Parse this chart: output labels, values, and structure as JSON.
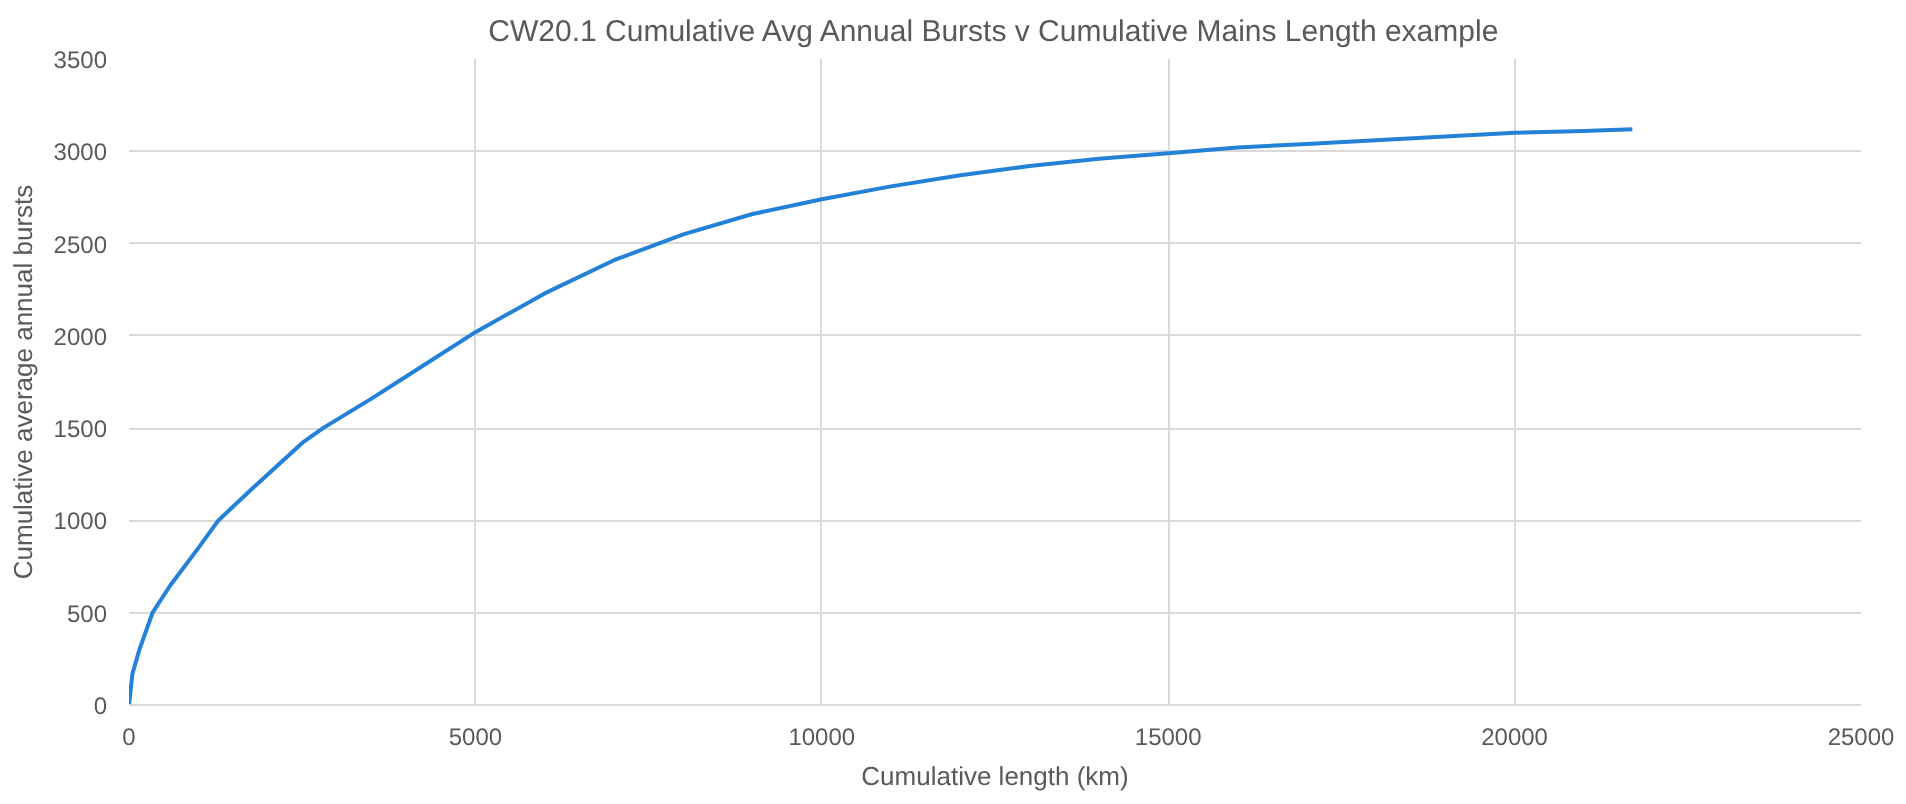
{
  "chart_data": {
    "type": "line",
    "title": "CW20.1 Cumulative Avg Annual Bursts v Cumulative Mains Length example",
    "xlabel": "Cumulative length (km)",
    "ylabel": "Cumulative average annual bursts",
    "x": [
      0,
      50,
      150,
      340,
      600,
      1000,
      1290,
      1800,
      2500,
      2800,
      3500,
      4000,
      5000,
      6000,
      7000,
      8000,
      9000,
      10000,
      11000,
      12000,
      13000,
      14000,
      15000,
      16000,
      17000,
      18000,
      19000,
      20000,
      21000,
      21700
    ],
    "series": [
      {
        "color": "#2381d8",
        "values": [
          0,
          170,
          300,
          500,
          650,
          850,
          1000,
          1180,
          1420,
          1500,
          1660,
          1780,
          2020,
          2230,
          2410,
          2550,
          2660,
          2740,
          2810,
          2870,
          2920,
          2960,
          2990,
          3020,
          3040,
          3060,
          3080,
          3100,
          3110,
          3120
        ]
      }
    ],
    "xlim": [
      0,
      25000
    ],
    "xticks": [
      0,
      5000,
      10000,
      15000,
      20000,
      25000
    ],
    "ylim": [
      0,
      3500
    ],
    "yticks": [
      0,
      500,
      1000,
      1500,
      2000,
      2500,
      3000,
      3500
    ],
    "grid": true,
    "marker": "none",
    "line_style": "solid"
  }
}
